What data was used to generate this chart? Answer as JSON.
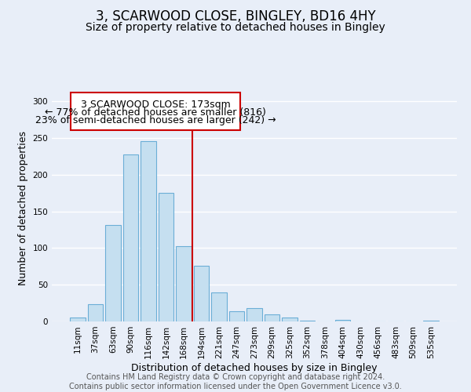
{
  "title": "3, SCARWOOD CLOSE, BINGLEY, BD16 4HY",
  "subtitle": "Size of property relative to detached houses in Bingley",
  "xlabel": "Distribution of detached houses by size in Bingley",
  "ylabel": "Number of detached properties",
  "bar_labels": [
    "11sqm",
    "37sqm",
    "63sqm",
    "90sqm",
    "116sqm",
    "142sqm",
    "168sqm",
    "194sqm",
    "221sqm",
    "247sqm",
    "273sqm",
    "299sqm",
    "325sqm",
    "352sqm",
    "378sqm",
    "404sqm",
    "430sqm",
    "456sqm",
    "483sqm",
    "509sqm",
    "535sqm"
  ],
  "bar_values": [
    5,
    24,
    132,
    228,
    246,
    175,
    103,
    76,
    40,
    14,
    18,
    10,
    5,
    1,
    0,
    2,
    0,
    0,
    0,
    0,
    1
  ],
  "bar_color": "#c5dff0",
  "bar_edge_color": "#6baed6",
  "vline_x": 6.5,
  "vline_color": "#cc0000",
  "annotation_line1": "3 SCARWOOD CLOSE: 173sqm",
  "annotation_line2": "← 77% of detached houses are smaller (816)",
  "annotation_line3": "23% of semi-detached houses are larger (242) →",
  "annotation_box_color": "#ffffff",
  "annotation_box_edge": "#cc0000",
  "ylim": [
    0,
    310
  ],
  "yticks": [
    0,
    50,
    100,
    150,
    200,
    250,
    300
  ],
  "footer_text": "Contains HM Land Registry data © Crown copyright and database right 2024.\nContains public sector information licensed under the Open Government Licence v3.0.",
  "bg_color": "#e8eef8",
  "plot_bg_color": "#e8eef8",
  "grid_color": "#ffffff",
  "title_fontsize": 12,
  "subtitle_fontsize": 10,
  "axis_label_fontsize": 9,
  "tick_fontsize": 7.5,
  "footer_fontsize": 7,
  "annotation_fontsize": 9
}
